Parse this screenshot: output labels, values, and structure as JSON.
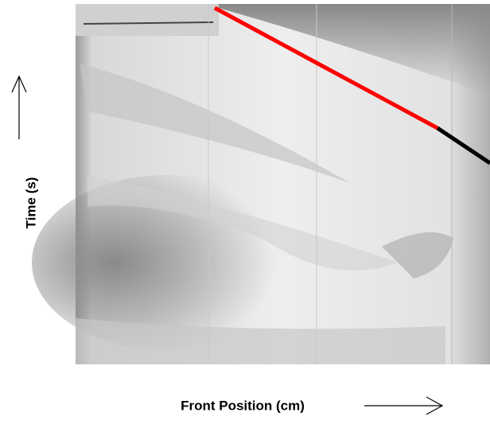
{
  "figure": {
    "y_label": "Time (s)",
    "x_label": "Front Position (cm)"
  }
}
